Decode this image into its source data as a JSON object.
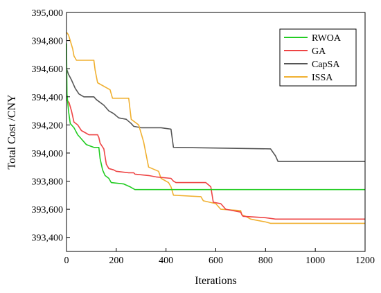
{
  "chart_data": {
    "type": "line",
    "xlabel": "Iterations",
    "ylabel": "Total Cost /CNY",
    "xlim": [
      0,
      1200
    ],
    "ylim": [
      393300,
      395000
    ],
    "xticks": [
      0,
      200,
      400,
      600,
      800,
      1000,
      1200
    ],
    "yticks": [
      393400,
      393600,
      393800,
      394000,
      394200,
      394400,
      394600,
      394800,
      395000
    ],
    "ytick_labels": [
      "393,400",
      "393,600",
      "393,800",
      "394,000",
      "394,200",
      "394,400",
      "394,600",
      "394,800",
      "395,000"
    ],
    "grid": false,
    "legend_position": "top-right",
    "series": [
      {
        "name": "RWOA",
        "color": "#22cc22",
        "points": [
          [
            0,
            394780
          ],
          [
            2,
            394420
          ],
          [
            8,
            394300
          ],
          [
            15,
            394210
          ],
          [
            30,
            394180
          ],
          [
            45,
            394130
          ],
          [
            55,
            394110
          ],
          [
            70,
            394080
          ],
          [
            80,
            394060
          ],
          [
            110,
            394040
          ],
          [
            130,
            394040
          ],
          [
            135,
            393960
          ],
          [
            140,
            393920
          ],
          [
            145,
            393880
          ],
          [
            155,
            393840
          ],
          [
            170,
            393820
          ],
          [
            180,
            393790
          ],
          [
            230,
            393780
          ],
          [
            255,
            393760
          ],
          [
            265,
            393750
          ],
          [
            275,
            393740
          ],
          [
            1200,
            393740
          ]
        ]
      },
      {
        "name": "GA",
        "color": "#ee4444",
        "points": [
          [
            0,
            394380
          ],
          [
            10,
            394360
          ],
          [
            20,
            394300
          ],
          [
            30,
            394220
          ],
          [
            45,
            394200
          ],
          [
            60,
            394160
          ],
          [
            80,
            394140
          ],
          [
            90,
            394130
          ],
          [
            125,
            394130
          ],
          [
            130,
            394110
          ],
          [
            135,
            394070
          ],
          [
            150,
            394030
          ],
          [
            160,
            393920
          ],
          [
            170,
            393890
          ],
          [
            190,
            393880
          ],
          [
            200,
            393870
          ],
          [
            250,
            393860
          ],
          [
            270,
            393860
          ],
          [
            275,
            393850
          ],
          [
            330,
            393840
          ],
          [
            360,
            393830
          ],
          [
            420,
            393820
          ],
          [
            430,
            393800
          ],
          [
            440,
            393790
          ],
          [
            560,
            393790
          ],
          [
            580,
            393760
          ],
          [
            590,
            393650
          ],
          [
            620,
            393640
          ],
          [
            640,
            393600
          ],
          [
            700,
            393580
          ],
          [
            705,
            393560
          ],
          [
            710,
            393550
          ],
          [
            800,
            393540
          ],
          [
            840,
            393530
          ],
          [
            1200,
            393530
          ]
        ]
      },
      {
        "name": "CapSA",
        "color": "#555555",
        "points": [
          [
            0,
            394600
          ],
          [
            8,
            394560
          ],
          [
            20,
            394520
          ],
          [
            35,
            394460
          ],
          [
            50,
            394420
          ],
          [
            70,
            394400
          ],
          [
            110,
            394400
          ],
          [
            120,
            394380
          ],
          [
            150,
            394340
          ],
          [
            160,
            394320
          ],
          [
            170,
            394300
          ],
          [
            190,
            394280
          ],
          [
            210,
            394250
          ],
          [
            240,
            394240
          ],
          [
            260,
            394210
          ],
          [
            270,
            394190
          ],
          [
            300,
            394180
          ],
          [
            380,
            394180
          ],
          [
            420,
            394170
          ],
          [
            430,
            394040
          ],
          [
            820,
            394030
          ],
          [
            840,
            393980
          ],
          [
            850,
            393940
          ],
          [
            1200,
            393940
          ]
        ]
      },
      {
        "name": "ISSA",
        "color": "#f0b030",
        "points": [
          [
            0,
            394860
          ],
          [
            8,
            394840
          ],
          [
            15,
            394800
          ],
          [
            25,
            394740
          ],
          [
            30,
            394690
          ],
          [
            40,
            394660
          ],
          [
            110,
            394660
          ],
          [
            115,
            394590
          ],
          [
            125,
            394500
          ],
          [
            175,
            394450
          ],
          [
            185,
            394390
          ],
          [
            250,
            394390
          ],
          [
            260,
            394240
          ],
          [
            290,
            394200
          ],
          [
            310,
            394080
          ],
          [
            320,
            393990
          ],
          [
            330,
            393900
          ],
          [
            370,
            393870
          ],
          [
            380,
            393820
          ],
          [
            410,
            393790
          ],
          [
            420,
            393760
          ],
          [
            430,
            393700
          ],
          [
            540,
            393690
          ],
          [
            550,
            393660
          ],
          [
            600,
            393640
          ],
          [
            620,
            393600
          ],
          [
            700,
            393590
          ],
          [
            705,
            393560
          ],
          [
            720,
            393550
          ],
          [
            740,
            393530
          ],
          [
            800,
            393510
          ],
          [
            820,
            393500
          ],
          [
            1200,
            393500
          ]
        ]
      }
    ]
  }
}
